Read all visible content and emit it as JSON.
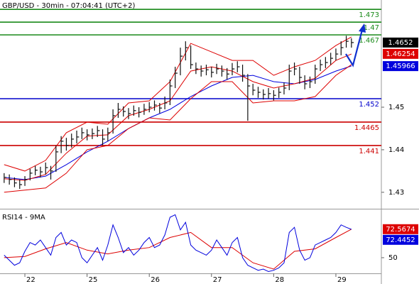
{
  "chart_data": [
    {
      "type": "ohlc",
      "title": "GBP/USD - 30min - 07:04:41 (UTC+2)",
      "color": "#111111",
      "high": [
        1.4345,
        1.4342,
        1.4335,
        1.433,
        1.4338,
        1.4355,
        1.4362,
        1.436,
        1.437,
        1.4362,
        1.441,
        1.4432,
        1.4428,
        1.4438,
        1.4445,
        1.4452,
        1.4448,
        1.445,
        1.4456,
        1.4448,
        1.4452,
        1.4495,
        1.451,
        1.4502,
        1.4498,
        1.4504,
        1.45,
        1.4508,
        1.4512,
        1.4516,
        1.451,
        1.4525,
        1.4565,
        1.4595,
        1.464,
        1.4655,
        1.4645,
        1.4605,
        1.4598,
        1.46,
        1.4595,
        1.4602,
        1.4598,
        1.4592,
        1.4604,
        1.4608,
        1.46,
        1.4578,
        1.4555,
        1.4548,
        1.4542,
        1.4545,
        1.454,
        1.4546,
        1.4558,
        1.46,
        1.4605,
        1.4595,
        1.4575,
        1.4572,
        1.46,
        1.4612,
        1.4618,
        1.4628,
        1.4638,
        1.4655,
        1.4668,
        1.4662
      ],
      "low": [
        1.4322,
        1.4318,
        1.4312,
        1.4308,
        1.4315,
        1.4328,
        1.434,
        1.4335,
        1.4342,
        1.433,
        1.4348,
        1.4392,
        1.4398,
        1.4405,
        1.4415,
        1.4425,
        1.4422,
        1.4425,
        1.443,
        1.441,
        1.442,
        1.4438,
        1.4475,
        1.4478,
        1.4472,
        1.448,
        1.4476,
        1.4482,
        1.4488,
        1.4492,
        1.4486,
        1.4495,
        1.4505,
        1.4545,
        1.4575,
        1.461,
        1.459,
        1.4578,
        1.4572,
        1.4575,
        1.457,
        1.4578,
        1.4572,
        1.4565,
        1.4575,
        1.4582,
        1.456,
        1.4468,
        1.4528,
        1.4522,
        1.4518,
        1.452,
        1.4516,
        1.4522,
        1.453,
        1.454,
        1.4575,
        1.4555,
        1.4542,
        1.4545,
        1.4555,
        1.4585,
        1.4592,
        1.46,
        1.461,
        1.4622,
        1.464,
        1.464
      ],
      "close": [
        1.4335,
        1.433,
        1.4322,
        1.4318,
        1.433,
        1.4345,
        1.4352,
        1.4348,
        1.4358,
        1.435,
        1.4395,
        1.442,
        1.441,
        1.4425,
        1.443,
        1.444,
        1.4435,
        1.4438,
        1.4445,
        1.4425,
        1.444,
        1.448,
        1.4495,
        1.449,
        1.4485,
        1.4492,
        1.4488,
        1.4495,
        1.45,
        1.4505,
        1.4498,
        1.451,
        1.455,
        1.458,
        1.462,
        1.464,
        1.46,
        1.459,
        1.4585,
        1.4588,
        1.4582,
        1.459,
        1.4585,
        1.4578,
        1.459,
        1.4595,
        1.4575,
        1.455,
        1.454,
        1.4535,
        1.453,
        1.4532,
        1.4528,
        1.4535,
        1.4545,
        1.4585,
        1.459,
        1.457,
        1.4555,
        1.456,
        1.459,
        1.46,
        1.4605,
        1.4615,
        1.4625,
        1.464,
        1.4655,
        1.4652
      ],
      "overlays": [
        {
          "color": "#0000dd",
          "x": [
            0,
            4,
            8,
            12,
            16,
            20,
            24,
            28,
            32,
            36,
            40,
            44,
            48,
            52,
            56,
            60,
            64,
            67
          ],
          "values": [
            1.4335,
            1.433,
            1.4338,
            1.4365,
            1.4395,
            1.442,
            1.445,
            1.4475,
            1.4495,
            1.4525,
            1.455,
            1.457,
            1.4575,
            1.456,
            1.4555,
            1.4565,
            1.4585,
            1.4597
          ]
        },
        {
          "color": "#dd0000",
          "x": [
            0,
            4,
            8,
            12,
            16,
            20,
            24,
            28,
            32,
            36,
            40,
            44,
            48,
            52,
            56,
            60,
            64,
            67
          ],
          "values": [
            1.4365,
            1.435,
            1.4375,
            1.444,
            1.4465,
            1.446,
            1.451,
            1.4515,
            1.456,
            1.465,
            1.463,
            1.461,
            1.461,
            1.4575,
            1.4595,
            1.461,
            1.4645,
            1.4665
          ]
        },
        {
          "color": "#dd0000",
          "x": [
            0,
            4,
            8,
            12,
            16,
            20,
            24,
            28,
            32,
            36,
            40,
            44,
            48,
            52,
            56,
            60,
            64,
            67
          ],
          "values": [
            1.4332,
            1.4328,
            1.4342,
            1.4392,
            1.4432,
            1.4435,
            1.448,
            1.4495,
            1.4515,
            1.4585,
            1.4595,
            1.4585,
            1.456,
            1.4545,
            1.4555,
            1.4568,
            1.461,
            1.4625
          ]
        },
        {
          "color": "#dd0000",
          "x": [
            0,
            4,
            8,
            12,
            16,
            20,
            24,
            28,
            32,
            36,
            40,
            44,
            48,
            52,
            56,
            60,
            64,
            67
          ],
          "values": [
            1.43,
            1.4305,
            1.431,
            1.4345,
            1.44,
            1.441,
            1.445,
            1.4475,
            1.447,
            1.452,
            1.456,
            1.456,
            1.451,
            1.4515,
            1.4515,
            1.4525,
            1.4575,
            1.46
          ]
        }
      ],
      "levels": [
        {
          "value": 1.473,
          "color": "#1a8a1a"
        },
        {
          "value": 1.47,
          "color": "#1a8a1a"
        },
        {
          "value": 1.467,
          "color": "#1a8a1a"
        },
        {
          "value": 1.452,
          "color": "#0000cc"
        },
        {
          "value": 1.4465,
          "color": "#cc0000"
        },
        {
          "value": 1.441,
          "color": "#cc0000"
        }
      ],
      "price_labels": [
        {
          "value": 1.4652,
          "color": "#000000"
        },
        {
          "value": 1.46254,
          "color": "#dd0000"
        },
        {
          "value": 1.45966,
          "color": "#0000dd"
        }
      ],
      "xlim": [
        -0.8,
        72.5
      ],
      "ylim": [
        1.4268,
        1.4752
      ],
      "yticks": [
        1.43,
        1.44,
        1.45
      ]
    },
    {
      "type": "line",
      "title": "RSI14 - 9MA",
      "color": "#0000dd",
      "values": [
        52,
        48,
        44,
        46,
        55,
        62,
        60,
        64,
        58,
        52,
        66,
        70,
        60,
        64,
        62,
        50,
        46,
        52,
        58,
        48,
        60,
        76,
        66,
        54,
        58,
        52,
        56,
        62,
        66,
        58,
        60,
        68,
        82,
        84,
        72,
        78,
        60,
        56,
        54,
        52,
        56,
        64,
        58,
        52,
        62,
        66,
        50,
        44,
        42,
        40,
        41,
        39,
        40,
        42,
        46,
        70,
        74,
        56,
        48,
        50,
        60,
        62,
        64,
        66,
        70,
        76,
        74,
        72.4452
      ],
      "overlays": [
        {
          "color": "#dd0000",
          "x": [
            0,
            4,
            8,
            12,
            16,
            20,
            24,
            28,
            32,
            36,
            40,
            44,
            48,
            52,
            56,
            60,
            64,
            67
          ],
          "values": [
            50,
            51,
            57,
            62,
            56,
            53,
            56,
            58,
            66,
            70,
            58,
            58,
            46,
            41,
            55,
            57,
            66,
            72.5674
          ]
        }
      ],
      "price_labels": [
        {
          "value": 72.5674,
          "color": "#dd0000"
        },
        {
          "value": 72.4452,
          "color": "#0000dd"
        }
      ],
      "xlim": [
        -0.8,
        72.5
      ],
      "ylim": [
        37.6,
        86.5
      ],
      "yticks": [
        50
      ],
      "xticks": [
        {
          "value": 4,
          "label": "22"
        },
        {
          "value": 16,
          "label": "25"
        },
        {
          "value": 28,
          "label": "26"
        },
        {
          "value": 40,
          "label": "27"
        },
        {
          "value": 52,
          "label": "28"
        },
        {
          "value": 64,
          "label": "29"
        }
      ]
    }
  ]
}
